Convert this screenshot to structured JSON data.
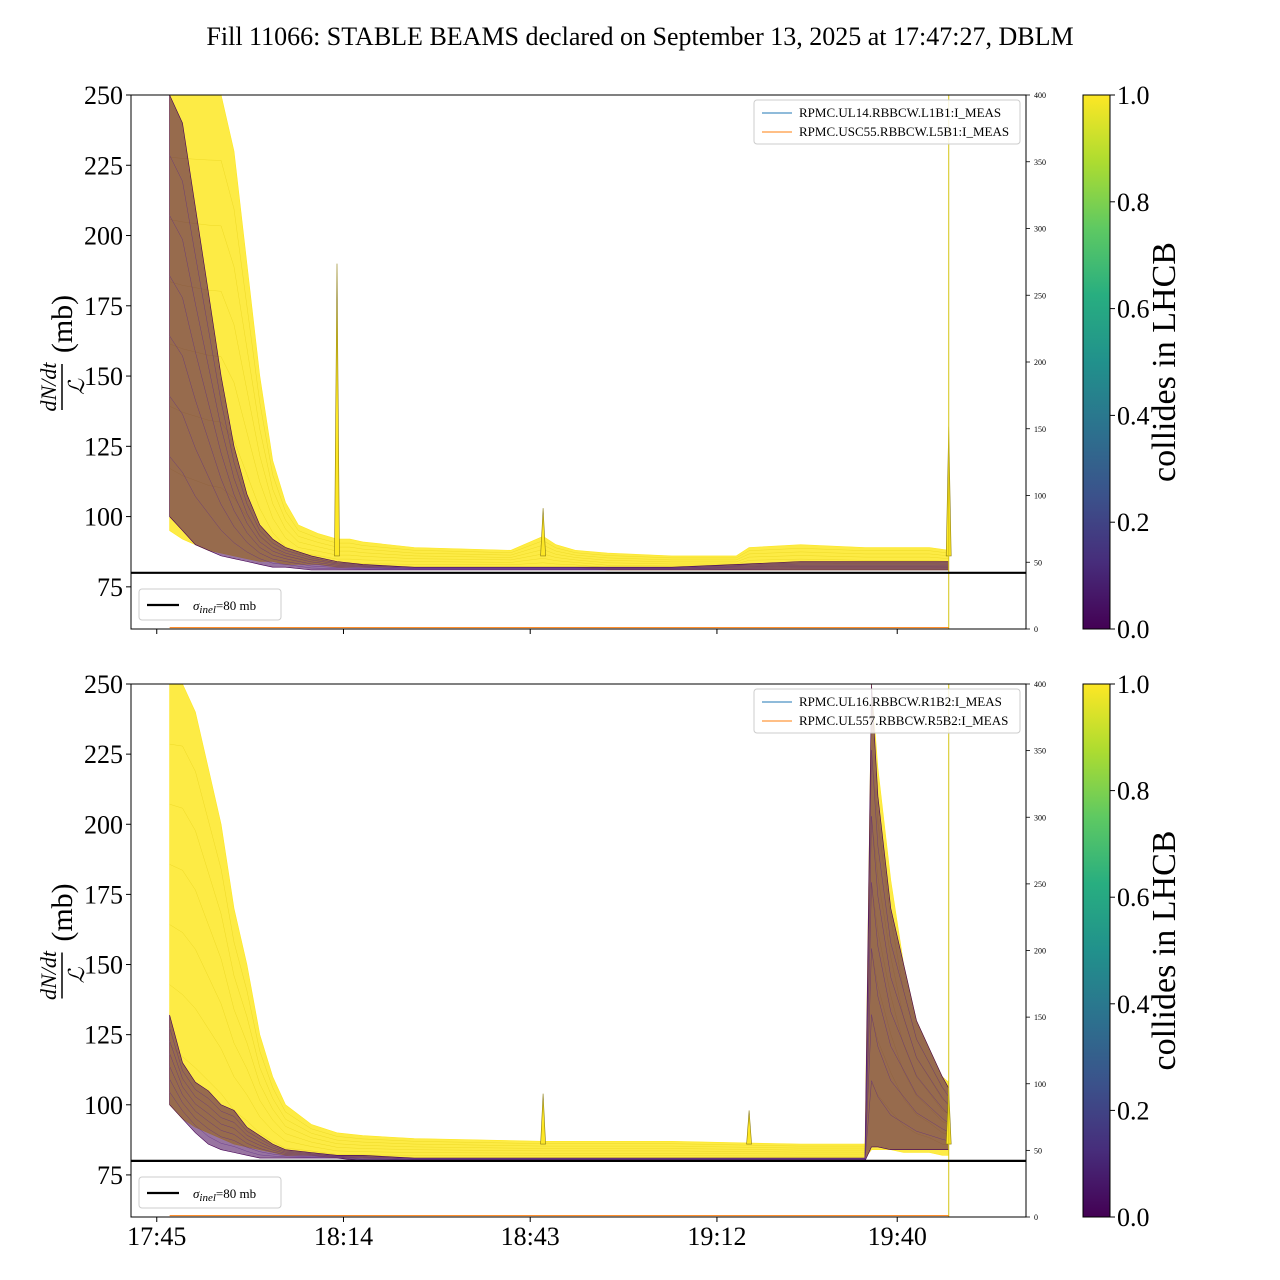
{
  "title": "Fill 11066: STABLE BEAMS declared on September 13, 2025 at 17:47:27, DBLM",
  "colors": {
    "collides": "#fde725",
    "non_colliding": "#440154",
    "bpm_line_1": "#1f77b4",
    "bpm_line_2": "#ff7f0e",
    "end_marker": "#d4c414",
    "reference": "#000000"
  },
  "chart_data": [
    {
      "type": "line",
      "panel": "top",
      "ylabel_numerator": "dN/dt",
      "ylabel_denominator": "ℒ",
      "ylabel_unit": "(mb)",
      "ylim": [
        60,
        250
      ],
      "yticks": [
        75,
        100,
        125,
        150,
        175,
        200,
        225,
        250
      ],
      "xticks": [
        "17:45",
        "18:14",
        "18:43",
        "19:12",
        "19:40"
      ],
      "show_xtick_labels": false,
      "x_range_minutes": [
        -4,
        135
      ],
      "right_axis": {
        "ylim": [
          0,
          400
        ],
        "ticks": [
          0,
          50,
          100,
          150,
          200,
          250,
          300,
          350,
          400
        ]
      },
      "reference_line": {
        "y": 80,
        "label": "σinel=80 mb",
        "label_main": "σ",
        "label_sub": "inel",
        "label_rest": "=80 mb"
      },
      "legend": [
        "RPMC.UL14.RBBCW.L1B1:I_MEAS",
        "RPMC.USC55.RBBCW.L5B1:I_MEAS"
      ],
      "end_marker_minutes": 123,
      "series": [
        {
          "name": "collides in LHCB = 1 (band)",
          "color_value": 1.0,
          "x": [
            2,
            4,
            6,
            8,
            10,
            12,
            14,
            16,
            18,
            20,
            22,
            25,
            28,
            30,
            32,
            40,
            55,
            60,
            62,
            65,
            70,
            80,
            90,
            92,
            100,
            110,
            120,
            123
          ],
          "upper": [
            250,
            250,
            250,
            250,
            250,
            230,
            190,
            150,
            120,
            105,
            97,
            94,
            92,
            92,
            91,
            89,
            88,
            93,
            90,
            88,
            87,
            86,
            86,
            89,
            90,
            89,
            89,
            88
          ],
          "lower": [
            95,
            92,
            90,
            88,
            87,
            86,
            85,
            84,
            84,
            83,
            83,
            83,
            82,
            82,
            82,
            82,
            82,
            82,
            82,
            82,
            81,
            81,
            81,
            81,
            81,
            81,
            81,
            81
          ]
        },
        {
          "name": "collides in LHCB = 0 (band)",
          "color_value": 0.0,
          "x": [
            2,
            4,
            6,
            8,
            10,
            12,
            14,
            16,
            18,
            20,
            24,
            28,
            32,
            40,
            60,
            80,
            90,
            100,
            123
          ],
          "upper": [
            250,
            240,
            210,
            180,
            150,
            125,
            108,
            97,
            92,
            89,
            86,
            84,
            83,
            82,
            82,
            82,
            83,
            84,
            84
          ],
          "lower": [
            100,
            95,
            90,
            88,
            86,
            85,
            84,
            83,
            82,
            82,
            81,
            81,
            81,
            81,
            81,
            81,
            81,
            81,
            81
          ]
        }
      ],
      "spikes": [
        {
          "x": 28,
          "y": 190,
          "color_value": 1.0
        },
        {
          "x": 60,
          "y": 103,
          "color_value": 1.0
        },
        {
          "x": 123,
          "y": 132,
          "color_value": 1.0
        }
      ]
    },
    {
      "type": "line",
      "panel": "bottom",
      "ylabel_numerator": "dN/dt",
      "ylabel_denominator": "ℒ",
      "ylabel_unit": "(mb)",
      "ylim": [
        60,
        250
      ],
      "yticks": [
        75,
        100,
        125,
        150,
        175,
        200,
        225,
        250
      ],
      "xticks": [
        "17:45",
        "18:14",
        "18:43",
        "19:12",
        "19:40"
      ],
      "show_xtick_labels": true,
      "x_range_minutes": [
        -4,
        135
      ],
      "right_axis": {
        "ylim": [
          0,
          400
        ],
        "ticks": [
          0,
          50,
          100,
          150,
          200,
          250,
          300,
          350,
          400
        ]
      },
      "reference_line": {
        "y": 80,
        "label": "σinel=80 mb",
        "label_main": "σ",
        "label_sub": "inel",
        "label_rest": "=80 mb"
      },
      "legend": [
        "RPMC.UL16.RBBCW.R1B2:I_MEAS",
        "RPMC.UL557.RBBCW.R5B2:I_MEAS"
      ],
      "end_marker_minutes": 123,
      "series": [
        {
          "name": "collides in LHCB = 1 (band)",
          "color_value": 1.0,
          "x": [
            2,
            4,
            6,
            8,
            10,
            12,
            14,
            16,
            18,
            20,
            24,
            28,
            32,
            40,
            60,
            80,
            100,
            110,
            111,
            112,
            114,
            116,
            118,
            120,
            122,
            123
          ],
          "upper": [
            250,
            250,
            240,
            220,
            200,
            170,
            150,
            125,
            110,
            100,
            93,
            90,
            89,
            88,
            87,
            87,
            86,
            86,
            250,
            220,
            180,
            150,
            130,
            120,
            110,
            108
          ],
          "lower": [
            100,
            95,
            92,
            90,
            88,
            86,
            85,
            84,
            83,
            82,
            82,
            81,
            81,
            81,
            81,
            81,
            81,
            81,
            84,
            84,
            84,
            83,
            83,
            83,
            82,
            82
          ]
        },
        {
          "name": "collides in LHCB = 0 (band)",
          "color_value": 0.0,
          "x": [
            2,
            4,
            6,
            8,
            10,
            12,
            14,
            16,
            18,
            20,
            24,
            28,
            32,
            40,
            60,
            80,
            100,
            110,
            111,
            112,
            114,
            116,
            118,
            120,
            122,
            123
          ],
          "upper": [
            132,
            115,
            108,
            105,
            100,
            98,
            92,
            89,
            86,
            84,
            83,
            82,
            82,
            81,
            81,
            81,
            81,
            81,
            250,
            210,
            170,
            150,
            130,
            120,
            110,
            106
          ],
          "lower": [
            100,
            95,
            90,
            86,
            84,
            83,
            82,
            81,
            81,
            81,
            81,
            81,
            80,
            80,
            80,
            80,
            80,
            80,
            85,
            85,
            84,
            84,
            84,
            84,
            84,
            84
          ]
        }
      ],
      "spikes": [
        {
          "x": 60,
          "y": 104,
          "color_value": 1.0
        },
        {
          "x": 92,
          "y": 98,
          "color_value": 1.0
        },
        {
          "x": 123,
          "y": 106,
          "color_value": 1.0
        }
      ]
    }
  ],
  "colorbars": [
    {
      "label": "collides in LHCB",
      "ticks": [
        "0.0",
        "0.2",
        "0.4",
        "0.6",
        "0.8",
        "1.0"
      ],
      "range": [
        0,
        1
      ]
    },
    {
      "label": "collides in LHCB",
      "ticks": [
        "0.0",
        "0.2",
        "0.4",
        "0.6",
        "0.8",
        "1.0"
      ],
      "range": [
        0,
        1
      ]
    }
  ]
}
